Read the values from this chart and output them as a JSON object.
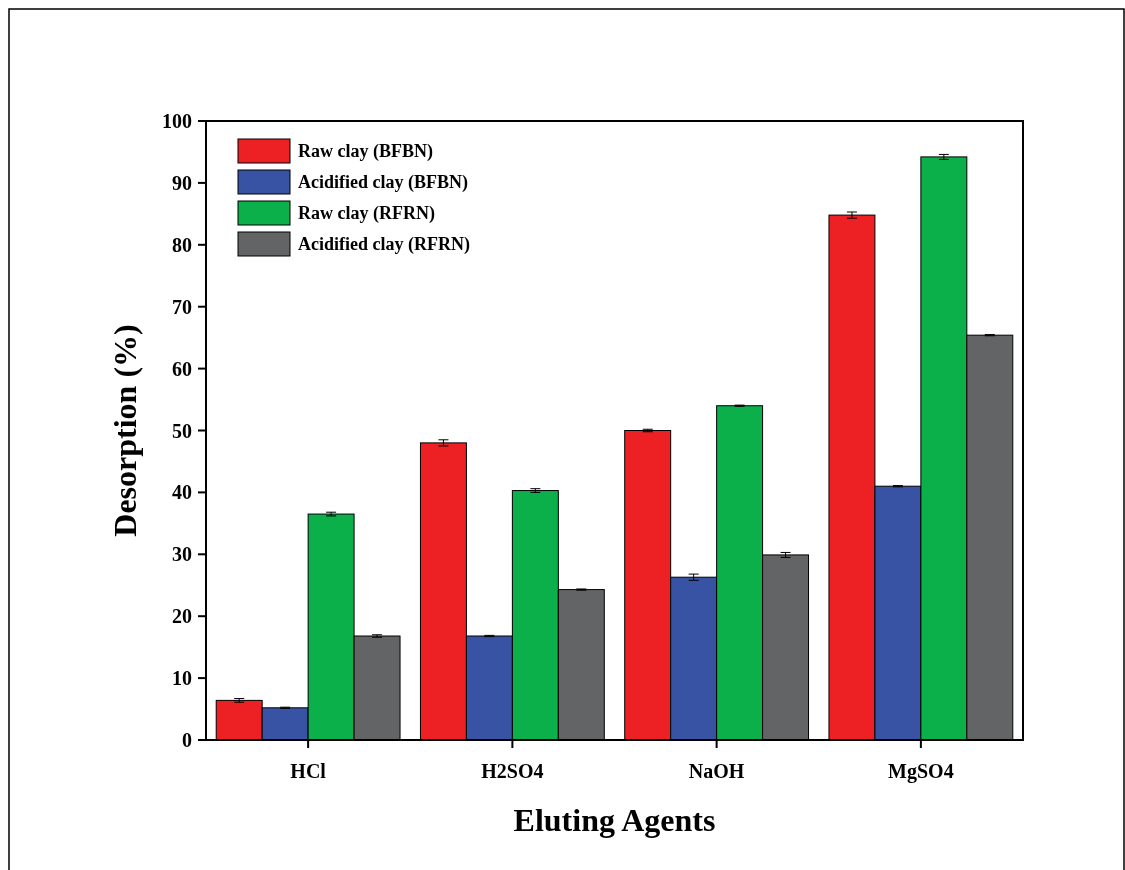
{
  "chart_data": {
    "type": "bar",
    "xlabel": "Eluting Agents",
    "ylabel": "Desorption (%)",
    "categories": [
      "HCl",
      "H2SO4",
      "NaOH",
      "MgSO4"
    ],
    "series": [
      {
        "name": "Raw clay (BFBN)",
        "color": "#ed2024",
        "values": [
          6.4,
          48,
          50,
          84.8
        ],
        "errors": [
          0.3,
          0.5,
          0.2,
          0.5
        ]
      },
      {
        "name": "Acidified clay (BFBN)",
        "color": "#3953a4",
        "values": [
          5.2,
          16.8,
          26.3,
          41
        ],
        "errors": [
          0.1,
          0.1,
          0.5,
          0.1
        ]
      },
      {
        "name": "Raw clay (RFRN)",
        "color": "#0bb04b",
        "values": [
          36.5,
          40.3,
          54,
          94.2
        ],
        "errors": [
          0.3,
          0.3,
          0.1,
          0.4
        ]
      },
      {
        "name": "Acidified clay (RFRN)",
        "color": "#636466",
        "values": [
          16.8,
          24.3,
          29.9,
          65.4
        ],
        "errors": [
          0.2,
          0.1,
          0.4,
          0.1
        ]
      }
    ],
    "ylim": [
      0,
      100
    ],
    "yticks": [
      0,
      10,
      20,
      30,
      40,
      50,
      60,
      70,
      80,
      90,
      100
    ],
    "legend": "top left",
    "grid": false
  }
}
